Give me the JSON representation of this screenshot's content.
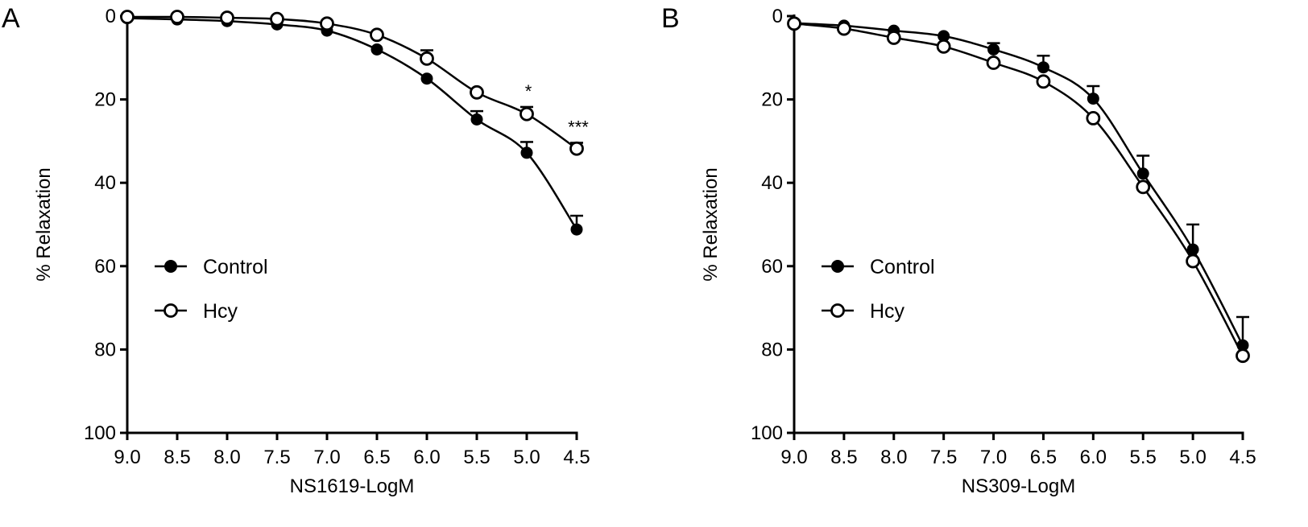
{
  "chart_data": [
    {
      "type": "line",
      "panel_label": "A",
      "xlabel": "NS1619-LogM",
      "ylabel": "% Relaxation",
      "x_reversed": true,
      "y_inverted": true,
      "xlim": [
        9.0,
        4.5
      ],
      "ylim": [
        0,
        100
      ],
      "xticks": [
        "9.0",
        "8.5",
        "8.0",
        "7.5",
        "7.0",
        "6.5",
        "6.0",
        "5.5",
        "5.0",
        "4.5"
      ],
      "yticks": [
        "0",
        "20",
        "40",
        "60",
        "80",
        "100"
      ],
      "x": [
        9.0,
        8.5,
        8.0,
        7.5,
        7.0,
        6.5,
        6.0,
        5.5,
        5.0,
        4.5
      ],
      "series": [
        {
          "name": "Control",
          "marker": "filled-circle",
          "values": [
            0.5,
            0.8,
            1.2,
            2.0,
            3.5,
            8.0,
            15.0,
            24.8,
            32.8,
            51.2
          ],
          "errors": [
            0.0,
            0.0,
            0.0,
            0.0,
            0.0,
            0.0,
            0.0,
            2.0,
            2.6,
            3.3
          ]
        },
        {
          "name": "Hcy",
          "marker": "open-circle",
          "values": [
            0.2,
            0.2,
            0.4,
            0.7,
            1.8,
            4.5,
            10.2,
            18.3,
            23.5,
            31.8
          ],
          "errors": [
            0.0,
            0.0,
            0.0,
            0.0,
            0.0,
            0.0,
            2.0,
            0.0,
            1.7,
            1.4
          ]
        }
      ],
      "annotations": [
        {
          "x": 5.0,
          "text": "*"
        },
        {
          "x": 4.5,
          "text": "***"
        }
      ],
      "legend_position": "middle-left"
    },
    {
      "type": "line",
      "panel_label": "B",
      "xlabel": "NS309-LogM",
      "ylabel": "% Relaxation",
      "x_reversed": true,
      "y_inverted": true,
      "xlim": [
        9.0,
        4.5
      ],
      "ylim": [
        0,
        100
      ],
      "xticks": [
        "9.0",
        "8.5",
        "8.0",
        "7.5",
        "7.0",
        "6.5",
        "6.0",
        "5.5",
        "5.0",
        "4.5"
      ],
      "yticks": [
        "0",
        "20",
        "40",
        "60",
        "80",
        "100"
      ],
      "x": [
        9.0,
        8.5,
        8.0,
        7.5,
        7.0,
        6.5,
        6.0,
        5.5,
        5.0,
        4.5
      ],
      "series": [
        {
          "name": "Control",
          "marker": "filled-circle",
          "values": [
            1.7,
            2.3,
            3.5,
            4.8,
            8.0,
            12.3,
            19.8,
            37.8,
            56.0,
            79.0
          ],
          "errors": [
            0.0,
            0.0,
            0.0,
            0.0,
            1.5,
            2.8,
            3.0,
            4.3,
            6.0,
            6.8
          ]
        },
        {
          "name": "Hcy",
          "marker": "open-circle",
          "values": [
            1.8,
            3.0,
            5.2,
            7.3,
            11.2,
            15.7,
            24.5,
            41.0,
            58.8,
            81.5
          ],
          "errors": [
            0.0,
            0.0,
            0.0,
            0.0,
            0.0,
            0.0,
            0.0,
            0.0,
            0.0,
            0.0
          ]
        }
      ],
      "annotations": [],
      "legend_position": "middle-left"
    }
  ]
}
